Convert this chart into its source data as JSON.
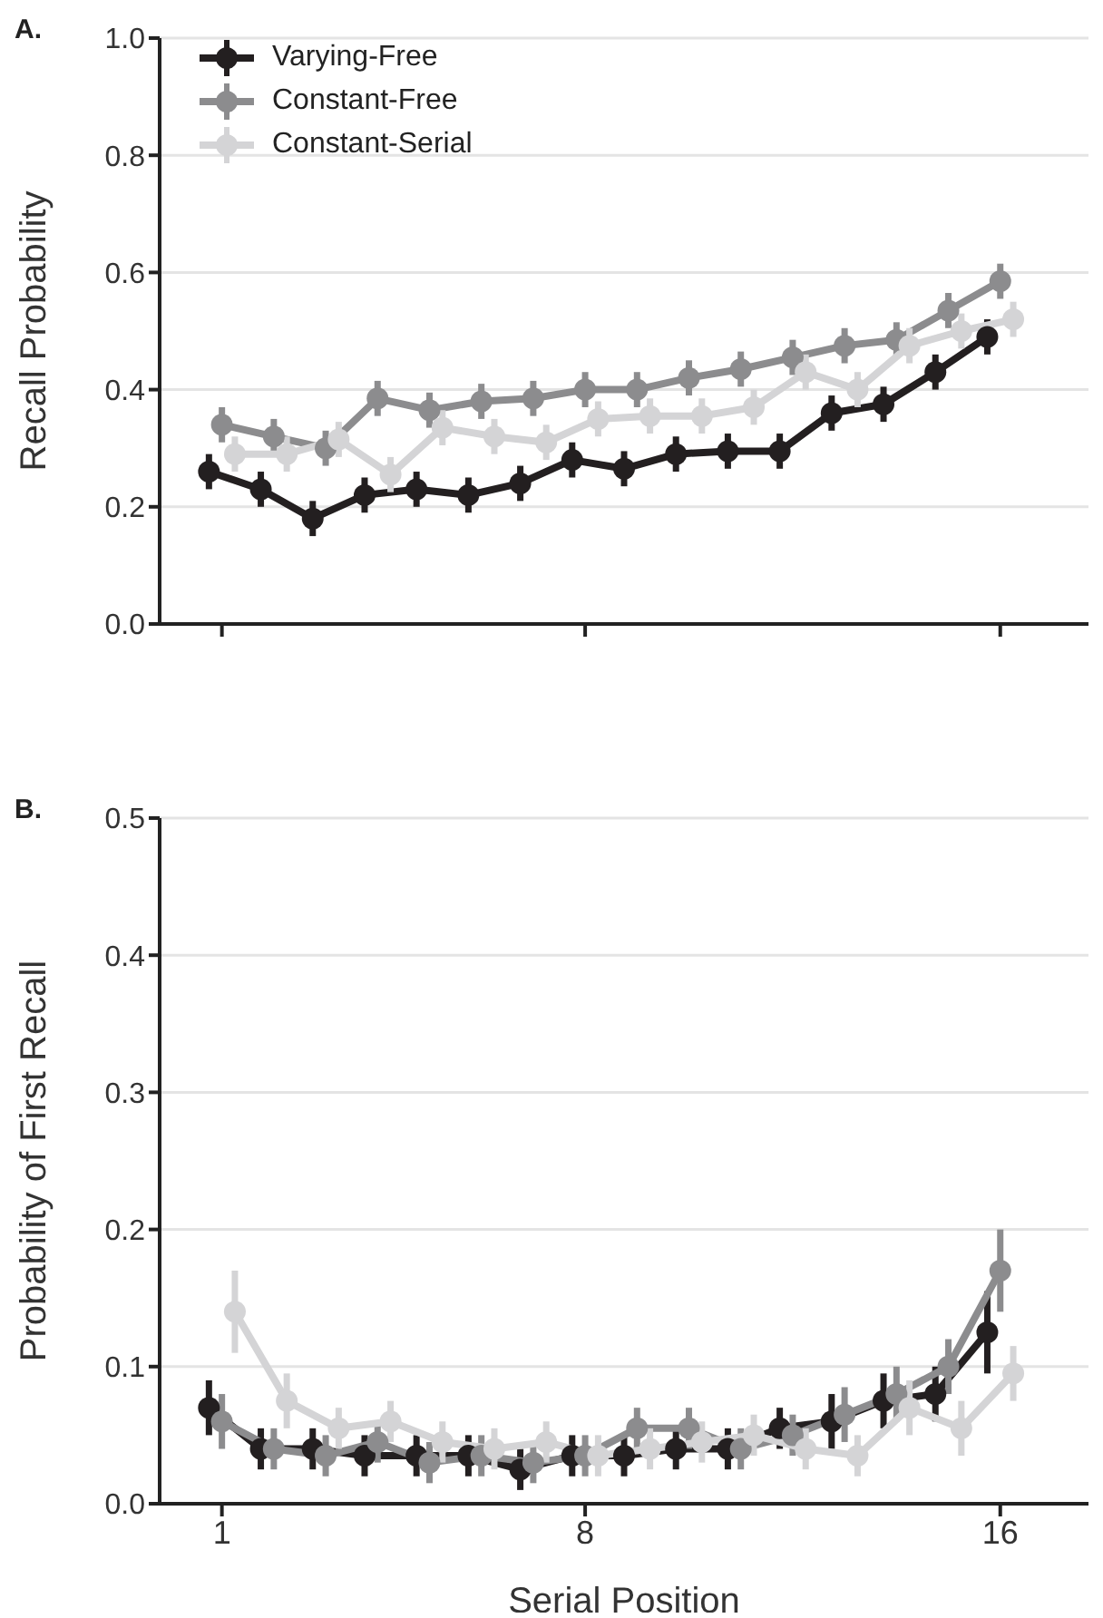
{
  "chart_data": [
    {
      "type": "line",
      "title": "A.",
      "ylabel": "Recall Probability",
      "xlim": [
        -0.2,
        17.7
      ],
      "xticks": [
        1,
        8,
        16
      ],
      "ylim": [
        0,
        1
      ],
      "yticks": [
        {
          "value": 0,
          "label": "0.0"
        },
        {
          "value": 0.2,
          "label": "0.2"
        },
        {
          "value": 0.4,
          "label": "0.4"
        },
        {
          "value": 0.6,
          "label": "0.6"
        },
        {
          "value": 0.8,
          "label": "0.8"
        },
        {
          "value": 1,
          "label": "1.0"
        }
      ],
      "grid": "y",
      "legend": "top left",
      "marker": "circle",
      "line_style": "solid",
      "tick_labels": "y",
      "series": [
        {
          "name": "Varying-Free",
          "color": "#231f20",
          "x": [
            0.75,
            1.75,
            2.75,
            3.75,
            4.75,
            5.75,
            6.75,
            7.75,
            8.75,
            9.75,
            10.75,
            11.75,
            12.75,
            13.75,
            14.75,
            15.75
          ],
          "values": [
            0.26,
            0.23,
            0.18,
            0.22,
            0.23,
            0.22,
            0.24,
            0.28,
            0.265,
            0.29,
            0.295,
            0.295,
            0.36,
            0.375,
            0.43,
            0.49
          ],
          "errors": [
            0.03,
            0.03,
            0.03,
            0.03,
            0.03,
            0.03,
            0.03,
            0.03,
            0.03,
            0.03,
            0.03,
            0.03,
            0.03,
            0.03,
            0.03,
            0.03
          ]
        },
        {
          "name": "Constant-Free",
          "color": "#8c8c8e",
          "x": [
            1,
            2,
            3,
            4,
            5,
            6,
            7,
            8,
            9,
            10,
            11,
            12,
            13,
            14,
            15,
            16
          ],
          "values": [
            0.34,
            0.32,
            0.3,
            0.385,
            0.365,
            0.38,
            0.385,
            0.4,
            0.4,
            0.42,
            0.435,
            0.455,
            0.475,
            0.485,
            0.535,
            0.585
          ],
          "errors": [
            0.03,
            0.03,
            0.03,
            0.03,
            0.03,
            0.03,
            0.03,
            0.03,
            0.03,
            0.03,
            0.03,
            0.03,
            0.03,
            0.03,
            0.03,
            0.03
          ]
        },
        {
          "name": "Constant-Serial",
          "color": "#d4d4d6",
          "x": [
            1.25,
            2.25,
            3.25,
            4.25,
            5.25,
            6.25,
            7.25,
            8.25,
            9.25,
            10.25,
            11.25,
            12.25,
            13.25,
            14.25,
            15.25,
            16.25
          ],
          "values": [
            0.29,
            0.29,
            0.315,
            0.255,
            0.335,
            0.32,
            0.31,
            0.35,
            0.355,
            0.355,
            0.37,
            0.43,
            0.4,
            0.475,
            0.5,
            0.52
          ],
          "errors": [
            0.03,
            0.03,
            0.03,
            0.03,
            0.03,
            0.03,
            0.03,
            0.03,
            0.03,
            0.03,
            0.03,
            0.03,
            0.03,
            0.03,
            0.03,
            0.03
          ]
        }
      ]
    },
    {
      "type": "line",
      "title": "B.",
      "xlabel": "Serial Position",
      "ylabel": "Probability of First Recall",
      "xlim": [
        -0.2,
        17.7
      ],
      "xticks": [
        1,
        8,
        16
      ],
      "ylim": [
        0,
        0.5
      ],
      "yticks": [
        {
          "value": 0,
          "label": "0.0"
        },
        {
          "value": 0.1,
          "label": "0.1"
        },
        {
          "value": 0.2,
          "label": "0.2"
        },
        {
          "value": 0.3,
          "label": "0.3"
        },
        {
          "value": 0.4,
          "label": "0.4"
        },
        {
          "value": 0.5,
          "label": "0.5"
        }
      ],
      "grid": "y",
      "marker": "circle",
      "line_style": "solid",
      "series": [
        {
          "color": "#231f20",
          "x": [
            0.75,
            1.75,
            2.75,
            3.75,
            4.75,
            5.75,
            6.75,
            7.75,
            8.75,
            9.75,
            10.75,
            11.75,
            12.75,
            13.75,
            14.75,
            15.75
          ],
          "values": [
            0.07,
            0.04,
            0.04,
            0.035,
            0.035,
            0.035,
            0.025,
            0.035,
            0.035,
            0.04,
            0.04,
            0.055,
            0.06,
            0.075,
            0.08,
            0.125
          ],
          "errors": [
            0.02,
            0.015,
            0.015,
            0.015,
            0.015,
            0.015,
            0.015,
            0.015,
            0.015,
            0.015,
            0.015,
            0.015,
            0.02,
            0.02,
            0.02,
            0.03
          ]
        },
        {
          "color": "#8c8c8e",
          "x": [
            1,
            2,
            3,
            4,
            5,
            6,
            7,
            8,
            9,
            10,
            11,
            12,
            13,
            14,
            15,
            16
          ],
          "values": [
            0.06,
            0.04,
            0.035,
            0.045,
            0.03,
            0.035,
            0.03,
            0.035,
            0.055,
            0.055,
            0.04,
            0.05,
            0.065,
            0.08,
            0.1,
            0.17
          ],
          "errors": [
            0.02,
            0.015,
            0.015,
            0.015,
            0.015,
            0.015,
            0.015,
            0.015,
            0.015,
            0.015,
            0.015,
            0.015,
            0.02,
            0.02,
            0.02,
            0.03
          ]
        },
        {
          "color": "#d4d4d6",
          "x": [
            1.25,
            2.25,
            3.25,
            4.25,
            5.25,
            6.25,
            7.25,
            8.25,
            9.25,
            10.25,
            11.25,
            12.25,
            13.25,
            14.25,
            15.25,
            16.25
          ],
          "values": [
            0.14,
            0.075,
            0.055,
            0.06,
            0.045,
            0.04,
            0.045,
            0.035,
            0.04,
            0.045,
            0.05,
            0.04,
            0.035,
            0.07,
            0.055,
            0.095
          ],
          "errors": [
            0.03,
            0.02,
            0.015,
            0.015,
            0.015,
            0.015,
            0.015,
            0.015,
            0.015,
            0.015,
            0.015,
            0.015,
            0.015,
            0.02,
            0.02,
            0.02
          ]
        }
      ]
    }
  ]
}
